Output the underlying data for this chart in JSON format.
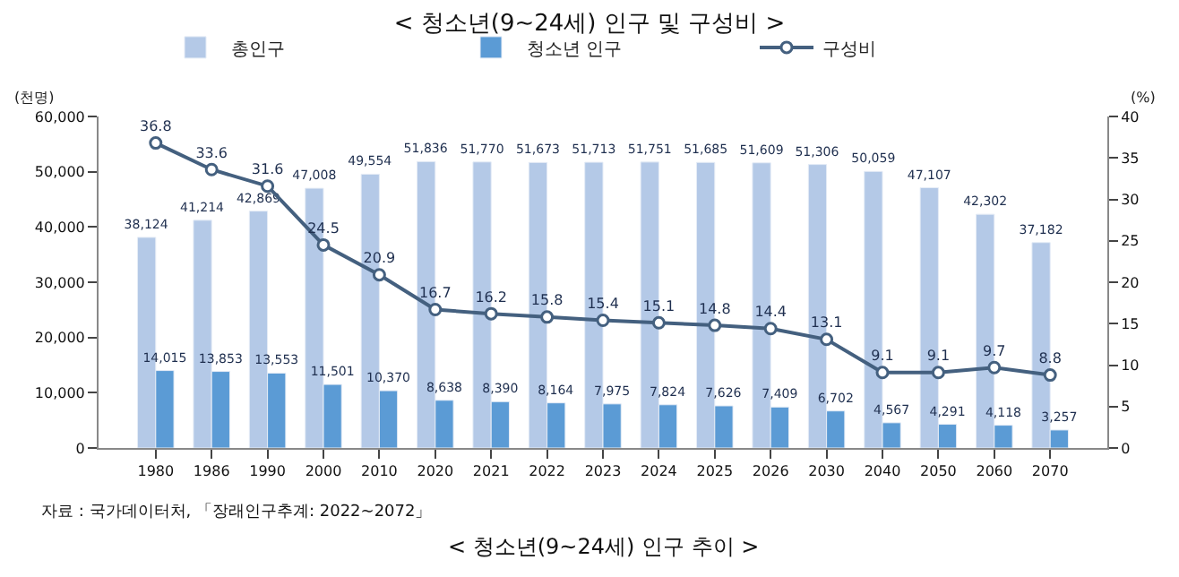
{
  "chart_data": {
    "type": "bar",
    "title": "< 청소년(9~24세) 인구 및 구성비 >",
    "ylabel": "(천명)",
    "y2label": "(%)",
    "categories": [
      "1980",
      "1986",
      "1990",
      "2000",
      "2010",
      "2020",
      "2021",
      "2022",
      "2023",
      "2024",
      "2025",
      "2026",
      "2030",
      "2040",
      "2050",
      "2060",
      "2070"
    ],
    "series": [
      {
        "name": "총인구",
        "color": "#b4c9e7",
        "values": [
          38124,
          41214,
          42869,
          47008,
          49554,
          51836,
          51770,
          51673,
          51713,
          51751,
          51685,
          51609,
          51306,
          50059,
          47107,
          42302,
          37182
        ],
        "value_labels": [
          "38,124",
          "41,214",
          "42,869",
          "47,008",
          "49,554",
          "51,836",
          "51,770",
          "51,673",
          "51,713",
          "51,751",
          "51,685",
          "51,609",
          "51,306",
          "50,059",
          "47,107",
          "42,302",
          "37,182"
        ]
      },
      {
        "name": "청소년 인구",
        "color": "#5b9bd5",
        "values": [
          14015,
          13853,
          13553,
          11501,
          10370,
          8638,
          8390,
          8164,
          7975,
          7824,
          7626,
          7409,
          6702,
          4567,
          4291,
          4118,
          3257
        ],
        "value_labels": [
          "14,015",
          "13,853",
          "13,553",
          "11,501",
          "10,370",
          "8,638",
          "8,390",
          "8,164",
          "7,975",
          "7,824",
          "7,626",
          "7,409",
          "6,702",
          "4,567",
          "4,291",
          "4,118",
          "3,257"
        ]
      },
      {
        "name": "구성비",
        "type": "line",
        "axis": "y2",
        "color": "#44607f",
        "marker": "circle",
        "values": [
          36.8,
          33.6,
          31.6,
          24.5,
          20.9,
          16.7,
          16.2,
          15.8,
          15.4,
          15.1,
          14.8,
          14.4,
          13.1,
          9.1,
          9.1,
          9.7,
          8.8
        ]
      }
    ],
    "ylim": [
      0,
      60000
    ],
    "yticks": [
      {
        "value": 0,
        "label": "0"
      },
      {
        "value": 10000,
        "label": "10,000"
      },
      {
        "value": 20000,
        "label": "20,000"
      },
      {
        "value": 30000,
        "label": "30,000"
      },
      {
        "value": 40000,
        "label": "40,000"
      },
      {
        "value": 50000,
        "label": "50,000"
      },
      {
        "value": 60000,
        "label": "60,000"
      }
    ],
    "y2lim": [
      0,
      40
    ],
    "y2ticks": [
      0,
      5,
      10,
      15,
      20,
      25,
      30,
      35,
      40
    ],
    "data_labels": true,
    "legend": "top",
    "annotations": [
      "자료 : 국가데이터처, 「장래인구추계: 2022~2072」",
      "< 청소년(9~24세) 인구 추이 >"
    ]
  }
}
